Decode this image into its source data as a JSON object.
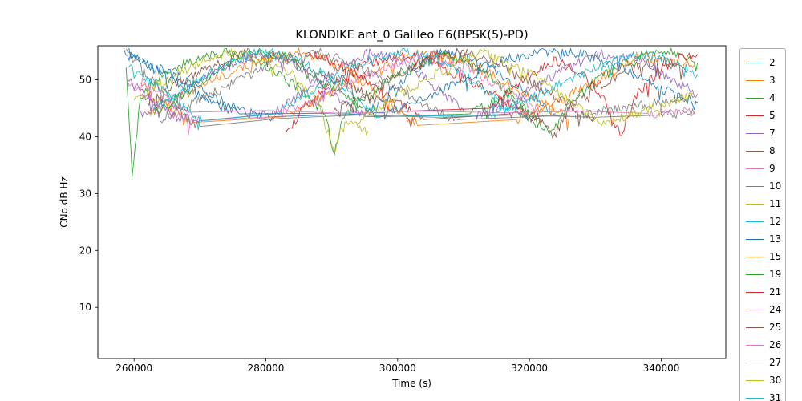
{
  "chart_data": {
    "type": "line",
    "title": "KLONDIKE ant_0 Galileo E6(BPSK(5)-PD)",
    "xlabel": "Time (s)",
    "ylabel": "CNo dB Hz",
    "xlim": [
      254500,
      349800
    ],
    "ylim": [
      1,
      56
    ],
    "xticks": [
      260000,
      280000,
      300000,
      320000,
      340000
    ],
    "yticks": [
      10,
      20,
      30,
      40,
      50
    ],
    "grid": false,
    "legend_position": "right-outside",
    "noise_amplitude": 0.85,
    "value_ceiling": 55.5,
    "series": [
      {
        "name": "2",
        "color": "#1f77b4",
        "points": [
          [
            258500,
            54.5
          ],
          [
            264000,
            52
          ],
          [
            270000,
            48.5
          ],
          [
            276000,
            44.5
          ],
          [
            281000,
            43.5
          ],
          [
            295000,
            44
          ],
          [
            301000,
            50
          ],
          [
            306000,
            54.8
          ],
          [
            312000,
            53.5
          ],
          [
            318000,
            49
          ],
          [
            324000,
            44
          ]
        ]
      },
      {
        "name": "3",
        "color": "#ff7f0e",
        "points": [
          [
            261000,
            49
          ],
          [
            265000,
            45.5
          ],
          [
            269000,
            42.5
          ],
          [
            283000,
            43.5
          ],
          [
            290000,
            48
          ],
          [
            296000,
            51.5
          ],
          [
            302000,
            54.5
          ],
          [
            308000,
            54.5
          ],
          [
            314000,
            51
          ],
          [
            320000,
            47
          ],
          [
            326000,
            43.5
          ]
        ]
      },
      {
        "name": "4",
        "color": "#2ca02c",
        "points": [
          [
            258800,
            52
          ],
          [
            259700,
            33.5
          ],
          [
            261000,
            47
          ],
          [
            264000,
            50.5
          ],
          [
            269000,
            53.5
          ],
          [
            274000,
            55
          ],
          [
            280000,
            52.5
          ],
          [
            285000,
            48.5
          ],
          [
            289000,
            44
          ],
          [
            290400,
            37
          ],
          [
            292000,
            44.5
          ],
          [
            297000,
            49
          ],
          [
            302000,
            52.5
          ],
          [
            307000,
            54.5
          ],
          [
            312000,
            52.5
          ],
          [
            317000,
            47.5
          ],
          [
            321000,
            41.5
          ]
        ]
      },
      {
        "name": "5",
        "color": "#d62728",
        "points": [
          [
            283000,
            40.5
          ],
          [
            286000,
            45.5
          ],
          [
            290000,
            49.5
          ],
          [
            295000,
            52.5
          ],
          [
            300000,
            54.5
          ],
          [
            305000,
            53.5
          ],
          [
            310000,
            50.5
          ],
          [
            315000,
            47
          ],
          [
            319000,
            44.5
          ],
          [
            322000,
            43
          ]
        ]
      },
      {
        "name": "7",
        "color": "#9467bd",
        "points": [
          [
            259000,
            50
          ],
          [
            262500,
            46.5
          ],
          [
            266000,
            43.5
          ],
          [
            270000,
            42.8
          ],
          [
            281000,
            44
          ],
          [
            286000,
            48
          ],
          [
            291000,
            52
          ],
          [
            296000,
            55
          ],
          [
            301000,
            53
          ],
          [
            306000,
            48.5
          ],
          [
            310000,
            44.5
          ]
        ]
      },
      {
        "name": "8",
        "color": "#8c564b",
        "points": [
          [
            262000,
            46
          ],
          [
            267000,
            49.5
          ],
          [
            272000,
            52.5
          ],
          [
            277000,
            54.8
          ],
          [
            283000,
            54
          ],
          [
            289000,
            51
          ],
          [
            295000,
            47.5
          ],
          [
            300000,
            44.5
          ],
          [
            304000,
            43
          ],
          [
            317000,
            44
          ],
          [
            321000,
            43
          ],
          [
            323800,
            40
          ],
          [
            326000,
            45
          ],
          [
            330000,
            48.5
          ],
          [
            335000,
            52
          ],
          [
            340000,
            53.5
          ],
          [
            344000,
            51.5
          ]
        ]
      },
      {
        "name": "9",
        "color": "#e377c2",
        "points": [
          [
            259000,
            49.5
          ],
          [
            262000,
            47
          ],
          [
            266000,
            44
          ],
          [
            270000,
            42.8
          ],
          [
            281000,
            43.5
          ],
          [
            288000,
            46.5
          ],
          [
            294000,
            50
          ],
          [
            300000,
            53
          ],
          [
            305000,
            54.5
          ],
          [
            311000,
            52
          ],
          [
            317000,
            47.5
          ],
          [
            321500,
            44.5
          ]
        ]
      },
      {
        "name": "10",
        "color": "#7f7f7f",
        "points": [
          [
            258800,
            55
          ],
          [
            261500,
            51.5
          ],
          [
            264500,
            47.5
          ],
          [
            267500,
            44
          ],
          [
            270000,
            41.8
          ],
          [
            282000,
            43.2
          ],
          [
            294000,
            43.8
          ],
          [
            306000,
            43.4
          ],
          [
            318000,
            43.8
          ],
          [
            330000,
            43.4
          ],
          [
            340000,
            43.8
          ],
          [
            345000,
            44
          ]
        ]
      },
      {
        "name": "11",
        "color": "#bcbd22",
        "points": [
          [
            260000,
            46
          ],
          [
            264000,
            49.5
          ],
          [
            269000,
            52.5
          ],
          [
            274000,
            54.8
          ],
          [
            279000,
            54
          ],
          [
            284000,
            51
          ],
          [
            288000,
            46
          ],
          [
            290300,
            37.5
          ],
          [
            292000,
            43
          ],
          [
            295500,
            41
          ]
        ]
      },
      {
        "name": "12",
        "color": "#17becf",
        "points": [
          [
            259000,
            52.5
          ],
          [
            262500,
            49.5
          ],
          [
            266500,
            46
          ],
          [
            270500,
            42.8
          ],
          [
            281500,
            44
          ],
          [
            287000,
            48
          ],
          [
            292000,
            51.5
          ],
          [
            297000,
            54
          ],
          [
            302000,
            55
          ],
          [
            308000,
            52.5
          ],
          [
            313000,
            48.5
          ],
          [
            317000,
            45
          ],
          [
            320000,
            43.5
          ]
        ]
      },
      {
        "name": "13",
        "color": "#1f77b4",
        "points": [
          [
            259000,
            55
          ],
          [
            265000,
            50.5
          ],
          [
            271000,
            46.5
          ],
          [
            276000,
            44
          ],
          [
            298000,
            44.2
          ],
          [
            304000,
            46.5
          ],
          [
            310000,
            50
          ],
          [
            316000,
            53.5
          ],
          [
            322000,
            55
          ],
          [
            328000,
            54.5
          ],
          [
            334000,
            52
          ],
          [
            340000,
            48.5
          ],
          [
            345500,
            46
          ]
        ]
      },
      {
        "name": "15",
        "color": "#ff7f0e",
        "points": [
          [
            262000,
            44
          ],
          [
            268000,
            47.5
          ],
          [
            274000,
            51
          ],
          [
            280000,
            54
          ],
          [
            286000,
            55
          ],
          [
            292000,
            52
          ],
          [
            298000,
            46.5
          ],
          [
            303000,
            42
          ],
          [
            318000,
            43
          ],
          [
            325000,
            46.5
          ],
          [
            331000,
            50.5
          ],
          [
            337000,
            54.5
          ],
          [
            343000,
            53
          ],
          [
            345500,
            52
          ]
        ]
      },
      {
        "name": "19",
        "color": "#2ca02c",
        "points": [
          [
            263000,
            44
          ],
          [
            268000,
            48
          ],
          [
            273000,
            52
          ],
          [
            278000,
            55
          ],
          [
            283000,
            54
          ],
          [
            288000,
            50
          ],
          [
            293000,
            46
          ],
          [
            297000,
            43.5
          ],
          [
            311000,
            44
          ],
          [
            317000,
            47.5
          ],
          [
            322000,
            42
          ],
          [
            323500,
            40.5
          ],
          [
            326000,
            46
          ],
          [
            331000,
            50.5
          ],
          [
            336000,
            54
          ],
          [
            341000,
            55
          ],
          [
            345500,
            53
          ]
        ]
      },
      {
        "name": "21",
        "color": "#d62728",
        "points": [
          [
            286000,
            55
          ],
          [
            290000,
            53.5
          ],
          [
            295000,
            50
          ],
          [
            299000,
            46.5
          ],
          [
            302000,
            44.5
          ],
          [
            314000,
            45
          ],
          [
            319000,
            50
          ],
          [
            324000,
            53.5
          ],
          [
            328000,
            51
          ],
          [
            331000,
            47
          ],
          [
            333900,
            40
          ],
          [
            336000,
            47
          ],
          [
            340000,
            52
          ],
          [
            343000,
            54
          ],
          [
            345500,
            54.5
          ]
        ]
      },
      {
        "name": "24",
        "color": "#9467bd",
        "points": [
          [
            261000,
            44
          ],
          [
            266000,
            47
          ],
          [
            271000,
            50.5
          ],
          [
            276000,
            53.5
          ],
          [
            281000,
            54.5
          ],
          [
            286000,
            51.5
          ],
          [
            291000,
            47
          ],
          [
            295000,
            43.5
          ],
          [
            312000,
            43.8
          ],
          [
            318000,
            47
          ],
          [
            324000,
            51
          ],
          [
            330000,
            54.5
          ],
          [
            336000,
            54
          ],
          [
            341000,
            50.5
          ],
          [
            345500,
            47.5
          ]
        ]
      },
      {
        "name": "25",
        "color": "#8c564b",
        "points": [
          [
            290000,
            44
          ],
          [
            295000,
            47.5
          ],
          [
            300000,
            51
          ],
          [
            305000,
            54
          ],
          [
            310000,
            55
          ],
          [
            316000,
            52.5
          ],
          [
            321000,
            49
          ],
          [
            326000,
            45.5
          ],
          [
            330000,
            43
          ]
        ]
      },
      {
        "name": "26",
        "color": "#e377c2",
        "points": [
          [
            261000,
            50
          ],
          [
            264500,
            47
          ],
          [
            268000,
            44.3
          ],
          [
            280000,
            44.6
          ],
          [
            292000,
            44.1
          ],
          [
            304000,
            44.5
          ],
          [
            316000,
            44.2
          ],
          [
            328000,
            44.5
          ],
          [
            338000,
            44.1
          ],
          [
            345000,
            44.4
          ]
        ]
      },
      {
        "name": "27",
        "color": "#7f7f7f",
        "points": [
          [
            264000,
            43
          ],
          [
            270000,
            46.5
          ],
          [
            276000,
            50
          ],
          [
            282000,
            53.5
          ],
          [
            288000,
            55
          ],
          [
            294000,
            52.5
          ],
          [
            300000,
            48.5
          ],
          [
            305000,
            45
          ],
          [
            309000,
            43
          ],
          [
            327000,
            43.8
          ],
          [
            334000,
            45
          ],
          [
            340000,
            46
          ],
          [
            345000,
            47
          ]
        ]
      },
      {
        "name": "30",
        "color": "#bcbd22",
        "points": [
          [
            294000,
            43
          ],
          [
            299000,
            46.5
          ],
          [
            304000,
            50
          ],
          [
            309000,
            53
          ],
          [
            313000,
            54.8
          ],
          [
            318000,
            52.5
          ],
          [
            323000,
            49
          ],
          [
            327000,
            45.5
          ],
          [
            331000,
            42.5
          ],
          [
            336000,
            44
          ],
          [
            341000,
            46
          ],
          [
            345000,
            47.5
          ]
        ]
      },
      {
        "name": "31",
        "color": "#17becf",
        "points": [
          [
            263000,
            45
          ],
          [
            268000,
            48.5
          ],
          [
            273000,
            52
          ],
          [
            278000,
            54.8
          ],
          [
            283000,
            54.5
          ],
          [
            288000,
            51.5
          ],
          [
            293000,
            47.5
          ],
          [
            297500,
            43.5
          ],
          [
            314000,
            43.8
          ],
          [
            321000,
            47
          ],
          [
            327000,
            50.5
          ],
          [
            333000,
            53.5
          ],
          [
            338000,
            54.5
          ],
          [
            343000,
            52.5
          ],
          [
            345500,
            51
          ]
        ]
      }
    ]
  }
}
